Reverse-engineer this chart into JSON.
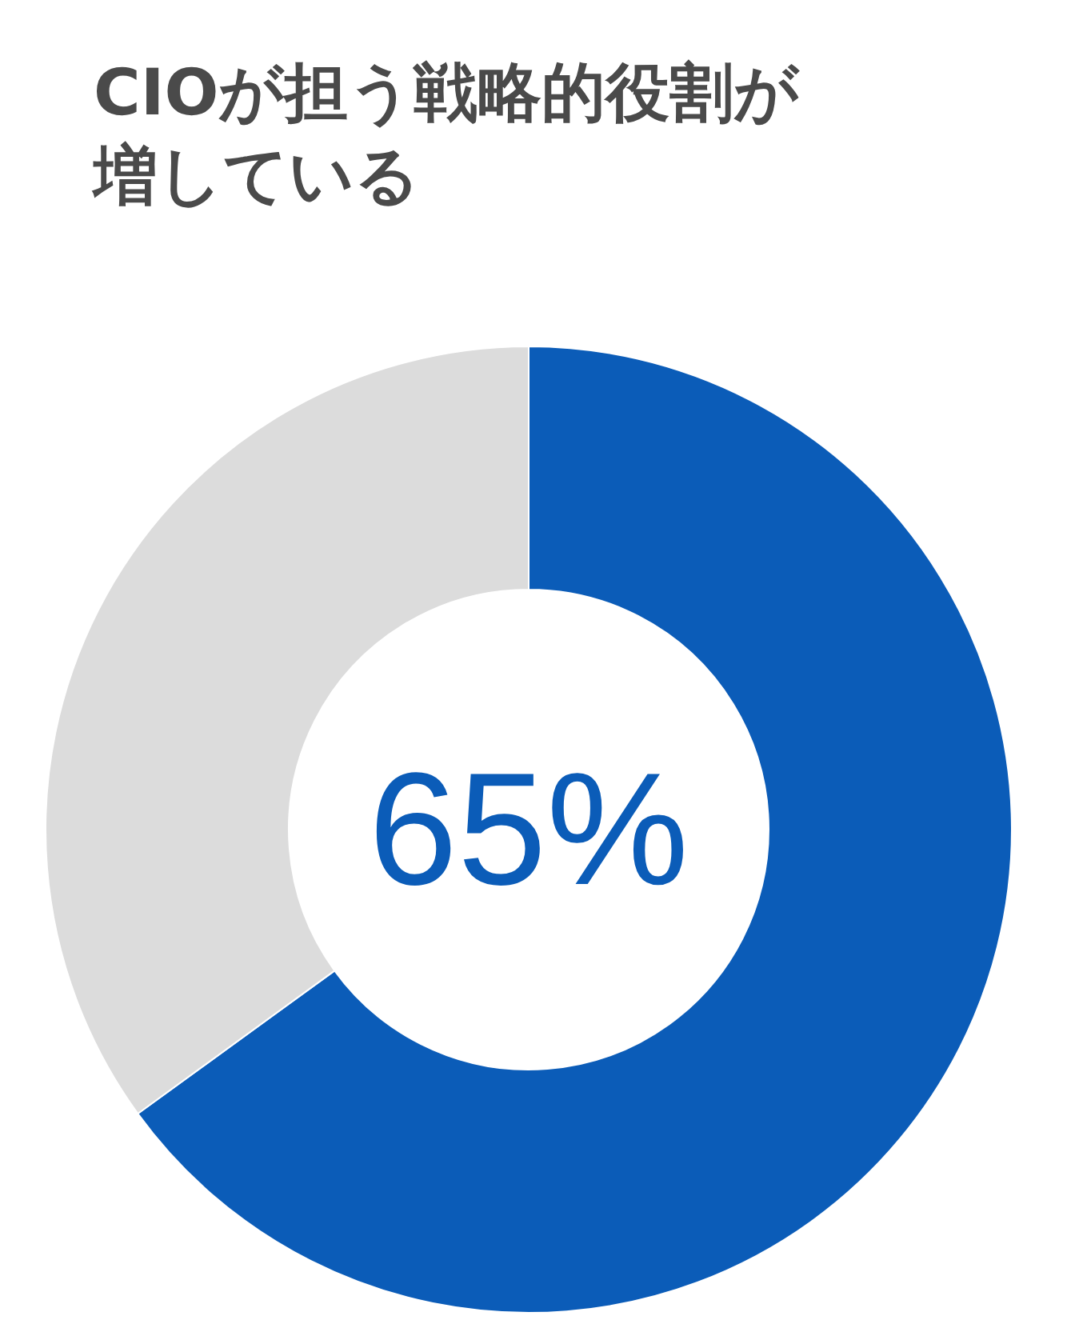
{
  "chart_data": {
    "type": "donut",
    "title": "CIOが担う戦略的役割が増している",
    "categories": [
      null,
      null
    ],
    "values": [
      65,
      35
    ],
    "colors": [
      "#0b5cb8",
      "#dcdcdc"
    ],
    "value_labels": [
      "65%",
      null
    ]
  }
}
